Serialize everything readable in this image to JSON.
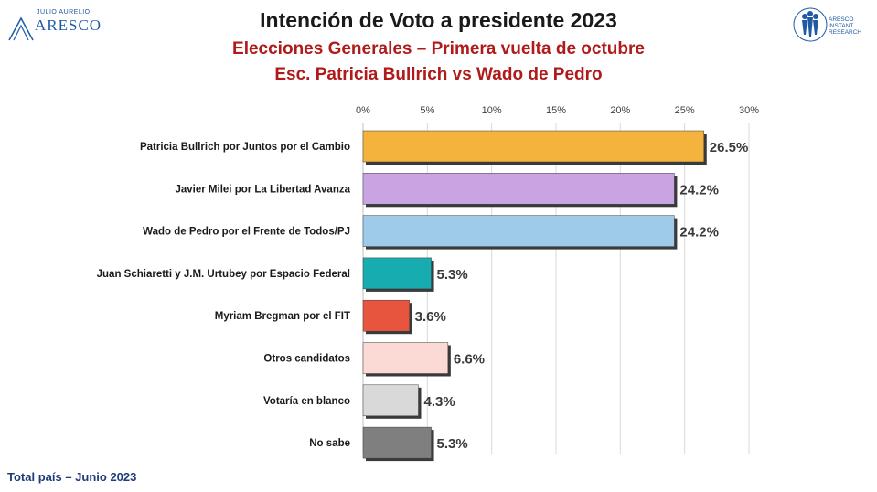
{
  "header": {
    "title": "Intención de Voto a presidente 2023",
    "subtitle1": "Elecciones Generales – Primera vuelta de octubre",
    "subtitle2": "Esc. Patricia Bullrich vs Wado de Pedro"
  },
  "logo_left": {
    "small_text": "JULIO AURELIO",
    "brand_text": "ARESCO"
  },
  "logo_right": {
    "line1": "ARESCO",
    "line2": "INSTANT",
    "line3": "RESEARCH"
  },
  "footer": {
    "text": "Total país – Junio 2023"
  },
  "colors": {
    "title": "#1a1a1a",
    "subtitle": "#b01a1a",
    "footer": "#1f3c7a"
  },
  "chart_data": {
    "type": "bar",
    "orientation": "horizontal",
    "categories": [
      "Patricia Bullrich por Juntos por el Cambio",
      "Javier Milei por La Libertad Avanza",
      "Wado de Pedro por el Frente de Todos/PJ",
      "Juan Schiaretti y J.M. Urtubey por Espacio Federal",
      "Myriam Bregman por el FIT",
      "Otros candidatos",
      "Votaría en blanco",
      "No sabe"
    ],
    "values": [
      26.5,
      24.2,
      24.2,
      5.3,
      3.6,
      6.6,
      4.3,
      5.3
    ],
    "value_labels": [
      "26.5%",
      "24.2%",
      "24.2%",
      "5.3%",
      "3.6%",
      "6.6%",
      "4.3%",
      "5.3%"
    ],
    "bar_colors": [
      "#f3b33d",
      "#c9a4e3",
      "#9dcbe9",
      "#17adb0",
      "#e8553e",
      "#fbd9d4",
      "#d9d9d9",
      "#7f7f7f"
    ],
    "xlim": [
      0,
      30
    ],
    "ticks": [
      0,
      5,
      10,
      15,
      20,
      25,
      30
    ],
    "tick_labels": [
      "0%",
      "5%",
      "10%",
      "15%",
      "20%",
      "25%",
      "30%"
    ],
    "axis_position": "top",
    "grid": true
  }
}
